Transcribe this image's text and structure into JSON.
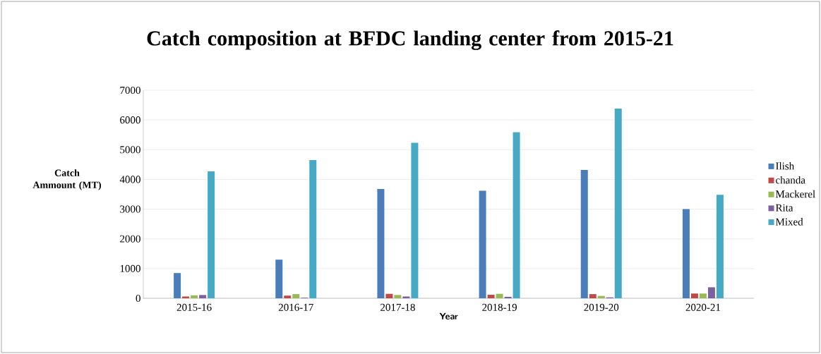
{
  "chart_data": {
    "type": "bar",
    "title": "Catch composition at BFDC landing center from 2015-21",
    "xlabel": "Year",
    "ylabel": "Catch Ammount (MT)",
    "categories": [
      "2015-16",
      "2016-17",
      "2017-18",
      "2018-19",
      "2019-20",
      "2020-21"
    ],
    "series": [
      {
        "name": "Ilish",
        "color": "#4a7ebb",
        "values": [
          850,
          1300,
          3680,
          3620,
          4320,
          3000
        ]
      },
      {
        "name": "chanda",
        "color": "#be4b48",
        "values": [
          60,
          90,
          150,
          120,
          140,
          160
        ]
      },
      {
        "name": "Mackerel",
        "color": "#98b954",
        "values": [
          100,
          140,
          110,
          150,
          80,
          160
        ]
      },
      {
        "name": "Rita",
        "color": "#7d60a0",
        "values": [
          110,
          20,
          60,
          50,
          30,
          370
        ]
      },
      {
        "name": "Mixed",
        "color": "#46aac5",
        "values": [
          4270,
          4650,
          5230,
          5590,
          6380,
          3480
        ]
      }
    ],
    "ylim": [
      0,
      7000
    ],
    "yticks": [
      0,
      1000,
      2000,
      3000,
      4000,
      5000,
      6000,
      7000
    ],
    "grid": "y",
    "legend": "right"
  }
}
